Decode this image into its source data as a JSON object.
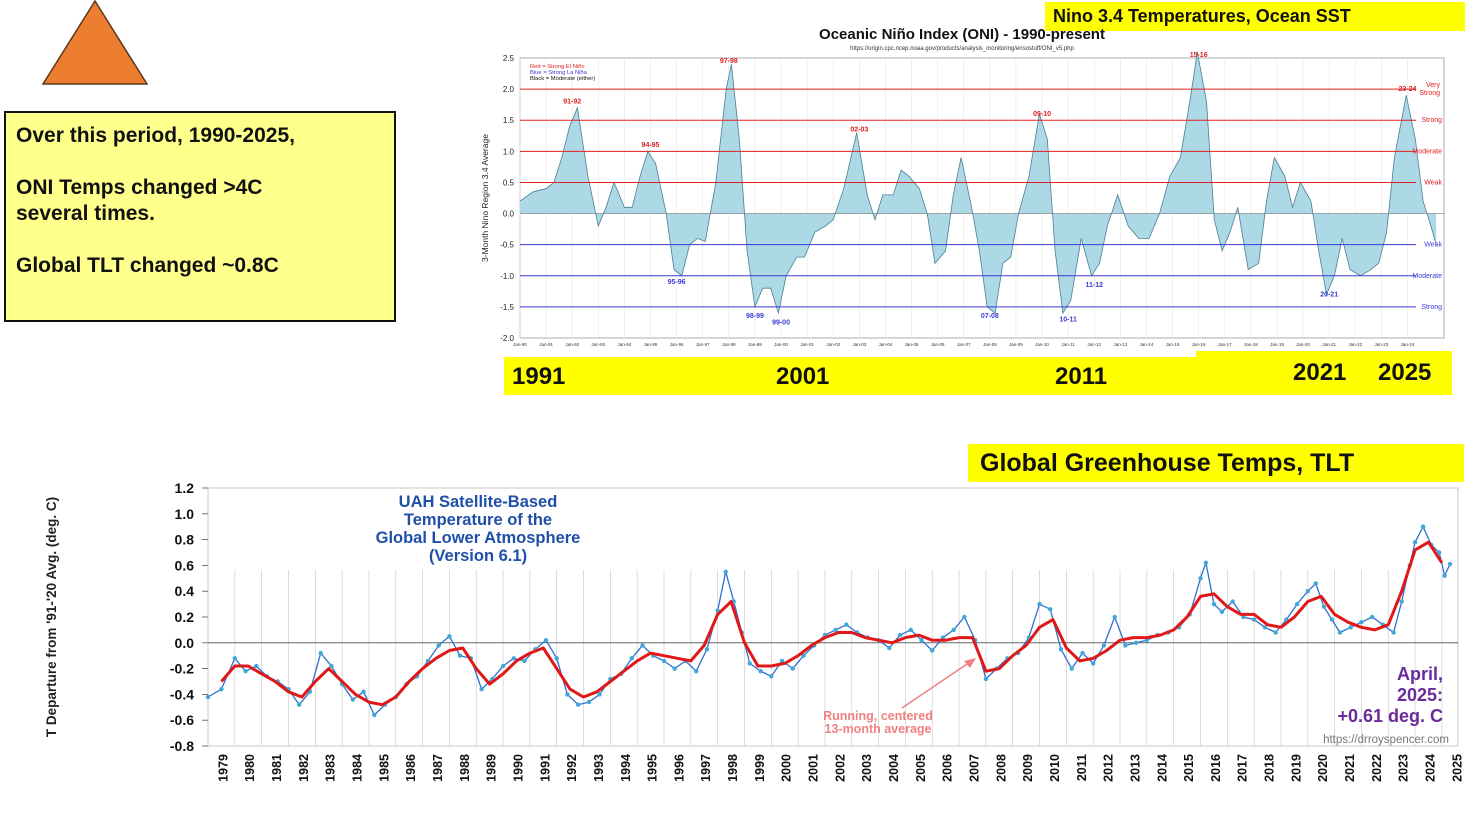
{
  "note": {
    "line1": "Over this period, 1990-2025,",
    "line2": "ONI Temps changed >4C",
    "line3": "several times.",
    "line4": "Global TLT changed ~0.8C"
  },
  "labels": {
    "nino_banner": "Nino 3.4 Temperatures,  Ocean  SST",
    "ghg_banner": "Global Greenhouse Temps, TLT",
    "year_marks": [
      "1991",
      "2001",
      "2011",
      "2021",
      "2025"
    ]
  },
  "colors": {
    "triangle": "#ed7d31",
    "highlight": "#ffff00",
    "note_bg": "#ffff8c",
    "oni_fill": "#add8e6",
    "red_line": "#e02020",
    "blue_line": "#3a3ad8",
    "uah_series": "#2f6fd0",
    "uah_avg": "#e01818",
    "uah_title": "#1f4fa8",
    "april_text": "#6a2a9a"
  },
  "chart_data": [
    {
      "id": "oni",
      "type": "area",
      "title": "Oceanic Niño Index (ONI) - 1990-present",
      "subtitle": "https://origin.cpc.ncep.noaa.gov/products/analysis_monitoring/ensostuff/ONI_v5.php",
      "ylabel": "3-Month Nino Region 3.4 Average",
      "ylim": [
        -2.0,
        2.5
      ],
      "xlim": [
        1990.0,
        2025.4
      ],
      "yticks": [
        -2.0,
        -1.5,
        -1.0,
        -0.5,
        0.0,
        0.5,
        1.0,
        1.5,
        2.0,
        2.5
      ],
      "xtick_labels": [
        "Jan-90",
        "Jan-91",
        "Jan-92",
        "Jan-93",
        "Jan-94",
        "Jan-95",
        "Jan-96",
        "Jan-97",
        "Jan-98",
        "Jan-99",
        "Jan-00",
        "Jan-01",
        "Jan-02",
        "Jan-03",
        "Jan-04",
        "Jan-05",
        "Jan-06",
        "Jan-07",
        "Jan-08",
        "Jan-09",
        "Jan-10",
        "Jan-11",
        "Jan-12",
        "Jan-13",
        "Jan-14",
        "Jan-15",
        "Jan-16",
        "Jan-17",
        "Jan-18",
        "Jan-19",
        "Jan-20",
        "Jan-21",
        "Jan-22",
        "Jan-23",
        "Jan-24"
      ],
      "legend": [
        "Red = Strong  El Niño",
        "Blue = Strong  La Niña",
        "Black = Moderate  (either)"
      ],
      "thresholds": [
        {
          "value": 2.0,
          "label": "Very Strong",
          "color": "red"
        },
        {
          "value": 1.5,
          "label": "Strong",
          "color": "red"
        },
        {
          "value": 1.0,
          "label": "Moderate",
          "color": "red"
        },
        {
          "value": 0.5,
          "label": "Weak",
          "color": "red"
        },
        {
          "value": -0.5,
          "label": "Weak",
          "color": "blue"
        },
        {
          "value": -1.0,
          "label": "Moderate",
          "color": "blue"
        },
        {
          "value": -1.5,
          "label": "Strong",
          "color": "blue"
        }
      ],
      "series": {
        "x": [
          1990.0,
          1990.5,
          1991.0,
          1991.3,
          1991.6,
          1991.9,
          1992.2,
          1992.6,
          1993.0,
          1993.3,
          1993.6,
          1994.0,
          1994.3,
          1994.6,
          1994.9,
          1995.2,
          1995.6,
          1995.9,
          1996.2,
          1996.5,
          1996.8,
          1997.1,
          1997.5,
          1997.9,
          1998.1,
          1998.4,
          1998.7,
          1999.0,
          1999.3,
          1999.6,
          1999.9,
          2000.2,
          2000.6,
          2000.9,
          2001.3,
          2001.7,
          2002.0,
          2002.4,
          2002.9,
          2003.3,
          2003.6,
          2003.9,
          2004.3,
          2004.6,
          2004.9,
          2005.3,
          2005.6,
          2005.9,
          2006.3,
          2006.6,
          2006.9,
          2007.3,
          2007.6,
          2007.9,
          2008.2,
          2008.5,
          2008.8,
          2009.1,
          2009.5,
          2009.9,
          2010.2,
          2010.5,
          2010.8,
          2011.1,
          2011.5,
          2011.9,
          2012.2,
          2012.5,
          2012.9,
          2013.3,
          2013.7,
          2014.1,
          2014.5,
          2014.9,
          2015.3,
          2015.7,
          2015.95,
          2016.3,
          2016.6,
          2016.9,
          2017.2,
          2017.5,
          2017.9,
          2018.3,
          2018.6,
          2018.9,
          2019.3,
          2019.6,
          2019.9,
          2020.3,
          2020.6,
          2020.9,
          2021.2,
          2021.5,
          2021.8,
          2022.2,
          2022.6,
          2022.9,
          2023.2,
          2023.5,
          2023.95,
          2024.3,
          2024.6,
          2024.9,
          2025.1
        ],
        "y": [
          0.2,
          0.35,
          0.4,
          0.5,
          0.9,
          1.4,
          1.7,
          0.6,
          -0.2,
          0.1,
          0.5,
          0.1,
          0.1,
          0.6,
          1.0,
          0.8,
          0.0,
          -0.9,
          -1.0,
          -0.5,
          -0.4,
          -0.45,
          0.5,
          2.0,
          2.4,
          1.2,
          -0.6,
          -1.5,
          -1.2,
          -1.2,
          -1.6,
          -1.0,
          -0.7,
          -0.7,
          -0.3,
          -0.2,
          -0.1,
          0.4,
          1.3,
          0.3,
          -0.1,
          0.3,
          0.3,
          0.7,
          0.6,
          0.4,
          0.0,
          -0.8,
          -0.6,
          0.3,
          0.9,
          0.1,
          -0.6,
          -1.5,
          -1.6,
          -0.8,
          -0.7,
          0.0,
          0.6,
          1.6,
          1.2,
          -0.6,
          -1.6,
          -1.4,
          -0.4,
          -1.0,
          -0.8,
          -0.2,
          0.3,
          -0.2,
          -0.4,
          -0.4,
          0.0,
          0.6,
          0.9,
          1.9,
          2.6,
          1.8,
          -0.1,
          -0.6,
          -0.3,
          0.1,
          -0.9,
          -0.8,
          0.2,
          0.9,
          0.6,
          0.1,
          0.5,
          0.2,
          -0.6,
          -1.3,
          -1.0,
          -0.4,
          -0.9,
          -1.0,
          -0.9,
          -0.8,
          -0.3,
          0.9,
          1.9,
          1.2,
          0.2,
          -0.2,
          -0.5
        ]
      },
      "annotations": [
        {
          "text": "91-92",
          "x": 1992.0,
          "y": 1.8,
          "color": "red"
        },
        {
          "text": "94-95",
          "x": 1995.0,
          "y": 1.1,
          "color": "red"
        },
        {
          "text": "95-96",
          "x": 1996.0,
          "y": -1.1,
          "color": "blue"
        },
        {
          "text": "97-98",
          "x": 1998.0,
          "y": 2.45,
          "color": "red"
        },
        {
          "text": "98-99",
          "x": 1999.0,
          "y": -1.65,
          "color": "blue"
        },
        {
          "text": "99-00",
          "x": 2000.0,
          "y": -1.75,
          "color": "blue"
        },
        {
          "text": "02-03",
          "x": 2003.0,
          "y": 1.35,
          "color": "red"
        },
        {
          "text": "07-08",
          "x": 2008.0,
          "y": -1.65,
          "color": "blue"
        },
        {
          "text": "09-10",
          "x": 2010.0,
          "y": 1.6,
          "color": "red"
        },
        {
          "text": "10-11",
          "x": 2011.0,
          "y": -1.7,
          "color": "blue"
        },
        {
          "text": "11-12",
          "x": 2012.0,
          "y": -1.15,
          "color": "blue"
        },
        {
          "text": "15-16",
          "x": 2016.0,
          "y": 2.55,
          "color": "red"
        },
        {
          "text": "20-21",
          "x": 2021.0,
          "y": -1.3,
          "color": "blue"
        },
        {
          "text": "23-24",
          "x": 2024.0,
          "y": 2.0,
          "color": "red"
        }
      ]
    },
    {
      "id": "uah",
      "type": "line",
      "title": "UAH Satellite-Based Temperature of the Global Lower Atmosphere (Version 6.1)",
      "title_lines": [
        "UAH Satellite-Based",
        "Temperature of the",
        "Global Lower Atmosphere",
        "(Version 6.1)"
      ],
      "ylabel": "T Departure from '91-'20 Avg. (deg. C)",
      "ylim": [
        -0.8,
        1.2
      ],
      "xlim": [
        1979.0,
        2025.6
      ],
      "yticks": [
        1.2,
        1.0,
        0.8,
        0.6,
        0.4,
        0.2,
        0.0,
        -0.2,
        -0.4,
        -0.6,
        -0.8
      ],
      "ytick_labels": [
        "1.2",
        "1.0",
        "0.8",
        "0.6",
        "0.4",
        "0.2",
        "0.0",
        "-0.2",
        "-0.4",
        "-0.6",
        "-0.8"
      ],
      "xtick_labels": [
        "1979",
        "1980",
        "1981",
        "1982",
        "1983",
        "1984",
        "1985",
        "1986",
        "1987",
        "1988",
        "1989",
        "1990",
        "1991",
        "1992",
        "1993",
        "1994",
        "1995",
        "1996",
        "1997",
        "1998",
        "1999",
        "2000",
        "2001",
        "2002",
        "2003",
        "2004",
        "2005",
        "2006",
        "2007",
        "2008",
        "2009",
        "2010",
        "2011",
        "2012",
        "2013",
        "2014",
        "2015",
        "2016",
        "2017",
        "2018",
        "2019",
        "2020",
        "2021",
        "2022",
        "2023",
        "2024",
        "2025"
      ],
      "annotation_running_avg": [
        "Running, centered",
        "13-month average"
      ],
      "latest": [
        "April,",
        "2025:",
        "+0.61 deg. C"
      ],
      "source": "https://drroyspencer.com",
      "series": [
        {
          "name": "Monthly",
          "x": [
            1979.0,
            1979.5,
            1980.0,
            1980.4,
            1980.8,
            1981.2,
            1981.6,
            1982.0,
            1982.4,
            1982.8,
            1983.2,
            1983.6,
            1984.0,
            1984.4,
            1984.8,
            1985.2,
            1985.6,
            1986.0,
            1986.4,
            1986.8,
            1987.2,
            1987.6,
            1988.0,
            1988.4,
            1988.8,
            1989.2,
            1989.6,
            1990.0,
            1990.4,
            1990.8,
            1991.2,
            1991.6,
            1992.0,
            1992.4,
            1992.8,
            1993.2,
            1993.6,
            1994.0,
            1994.4,
            1994.8,
            1995.2,
            1995.6,
            1996.0,
            1996.4,
            1996.8,
            1997.2,
            1997.6,
            1998.0,
            1998.3,
            1998.6,
            1998.9,
            1999.2,
            1999.6,
            2000.0,
            2000.4,
            2000.8,
            2001.2,
            2001.6,
            2002.0,
            2002.4,
            2002.8,
            2003.2,
            2003.6,
            2004.0,
            2004.4,
            2004.8,
            2005.2,
            2005.6,
            2006.0,
            2006.4,
            2006.8,
            2007.2,
            2007.6,
            2008.0,
            2008.4,
            2008.8,
            2009.2,
            2009.6,
            2010.0,
            2010.4,
            2010.8,
            2011.2,
            2011.6,
            2012.0,
            2012.4,
            2012.8,
            2013.2,
            2013.6,
            2014.0,
            2014.4,
            2014.8,
            2015.2,
            2015.6,
            2016.0,
            2016.2,
            2016.5,
            2016.8,
            2017.2,
            2017.6,
            2018.0,
            2018.4,
            2018.8,
            2019.2,
            2019.6,
            2020.0,
            2020.3,
            2020.6,
            2020.9,
            2021.2,
            2021.6,
            2022.0,
            2022.4,
            2022.8,
            2023.2,
            2023.5,
            2023.8,
            2024.0,
            2024.3,
            2024.6,
            2024.9,
            2025.1,
            2025.3
          ],
          "y": [
            -0.42,
            -0.36,
            -0.12,
            -0.22,
            -0.18,
            -0.26,
            -0.3,
            -0.36,
            -0.48,
            -0.38,
            -0.08,
            -0.18,
            -0.32,
            -0.44,
            -0.38,
            -0.56,
            -0.48,
            -0.42,
            -0.32,
            -0.26,
            -0.14,
            -0.02,
            0.05,
            -0.1,
            -0.12,
            -0.36,
            -0.28,
            -0.18,
            -0.12,
            -0.14,
            -0.05,
            0.02,
            -0.12,
            -0.4,
            -0.48,
            -0.46,
            -0.4,
            -0.28,
            -0.24,
            -0.12,
            -0.02,
            -0.1,
            -0.14,
            -0.2,
            -0.14,
            -0.22,
            -0.05,
            0.25,
            0.55,
            0.32,
            0.08,
            -0.16,
            -0.22,
            -0.26,
            -0.14,
            -0.2,
            -0.1,
            -0.02,
            0.06,
            0.1,
            0.14,
            0.08,
            0.04,
            0.02,
            -0.04,
            0.06,
            0.1,
            0.02,
            -0.06,
            0.04,
            0.1,
            0.2,
            0.02,
            -0.28,
            -0.2,
            -0.12,
            -0.08,
            0.04,
            0.3,
            0.26,
            -0.05,
            -0.2,
            -0.08,
            -0.16,
            -0.02,
            0.2,
            -0.02,
            0.0,
            0.02,
            0.06,
            0.08,
            0.12,
            0.22,
            0.5,
            0.62,
            0.3,
            0.24,
            0.32,
            0.2,
            0.18,
            0.12,
            0.08,
            0.18,
            0.3,
            0.4,
            0.46,
            0.28,
            0.18,
            0.08,
            0.12,
            0.16,
            0.2,
            0.14,
            0.08,
            0.32,
            0.6,
            0.78,
            0.9,
            0.76,
            0.7,
            0.52,
            0.61
          ]
        },
        {
          "name": "Running, centered 13-month average",
          "x": [
            1979.5,
            1980.0,
            1980.5,
            1981.0,
            1981.5,
            1982.0,
            1982.5,
            1983.0,
            1983.5,
            1984.0,
            1984.5,
            1985.0,
            1985.5,
            1986.0,
            1986.5,
            1987.0,
            1987.5,
            1988.0,
            1988.5,
            1989.0,
            1989.5,
            1990.0,
            1990.5,
            1991.0,
            1991.5,
            1992.0,
            1992.5,
            1993.0,
            1993.5,
            1994.0,
            1994.5,
            1995.0,
            1995.5,
            1996.0,
            1996.5,
            1997.0,
            1997.5,
            1998.0,
            1998.5,
            1999.0,
            1999.5,
            2000.0,
            2000.5,
            2001.0,
            2001.5,
            2002.0,
            2002.5,
            2003.0,
            2003.5,
            2004.0,
            2004.5,
            2005.0,
            2005.5,
            2006.0,
            2006.5,
            2007.0,
            2007.5,
            2008.0,
            2008.5,
            2009.0,
            2009.5,
            2010.0,
            2010.5,
            2011.0,
            2011.5,
            2012.0,
            2012.5,
            2013.0,
            2013.5,
            2014.0,
            2014.5,
            2015.0,
            2015.5,
            2016.0,
            2016.5,
            2017.0,
            2017.5,
            2018.0,
            2018.5,
            2019.0,
            2019.5,
            2020.0,
            2020.5,
            2021.0,
            2021.5,
            2022.0,
            2022.5,
            2023.0,
            2023.5,
            2024.0,
            2024.5,
            2025.0
          ],
          "y": [
            -0.3,
            -0.18,
            -0.18,
            -0.24,
            -0.3,
            -0.38,
            -0.42,
            -0.3,
            -0.2,
            -0.3,
            -0.4,
            -0.46,
            -0.48,
            -0.42,
            -0.3,
            -0.2,
            -0.12,
            -0.06,
            -0.04,
            -0.2,
            -0.32,
            -0.24,
            -0.14,
            -0.08,
            -0.04,
            -0.2,
            -0.36,
            -0.42,
            -0.38,
            -0.3,
            -0.22,
            -0.14,
            -0.08,
            -0.1,
            -0.12,
            -0.14,
            -0.02,
            0.22,
            0.32,
            0.0,
            -0.18,
            -0.18,
            -0.16,
            -0.1,
            -0.02,
            0.04,
            0.08,
            0.08,
            0.04,
            0.02,
            0.0,
            0.04,
            0.06,
            0.02,
            0.02,
            0.04,
            0.04,
            -0.22,
            -0.2,
            -0.1,
            -0.02,
            0.12,
            0.18,
            -0.04,
            -0.14,
            -0.12,
            -0.06,
            0.02,
            0.04,
            0.04,
            0.06,
            0.1,
            0.2,
            0.36,
            0.38,
            0.28,
            0.22,
            0.22,
            0.14,
            0.12,
            0.2,
            0.32,
            0.36,
            0.22,
            0.16,
            0.12,
            0.1,
            0.14,
            0.4,
            0.72,
            0.78,
            0.62
          ]
        }
      ]
    }
  ]
}
